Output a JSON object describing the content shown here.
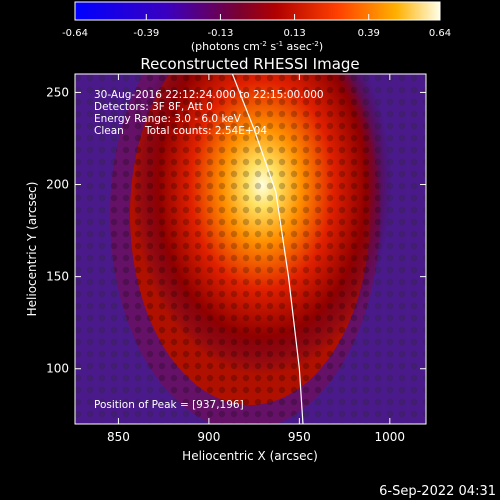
{
  "chart_data": {
    "type": "heatmap",
    "title": "Reconstructed RHESSI Image",
    "xlabel": "Heliocentric X (arcsec)",
    "ylabel": "Heliocentric Y (arcsec)",
    "xlim": [
      826,
      1020
    ],
    "ylim": [
      70,
      260
    ],
    "x_ticks": [
      850,
      900,
      950,
      1000
    ],
    "y_ticks": [
      100,
      150,
      200,
      250
    ],
    "colorbar": {
      "min": -0.64,
      "max": 0.64,
      "ticks": [
        "-0.64",
        "-0.39",
        "-0.13",
        "0.13",
        "0.39",
        "0.64"
      ],
      "units_prefix": "(photons cm",
      "units_sup1": "-2",
      "units_mid1": " s",
      "units_sup2": "-1",
      "units_mid2": " asec",
      "units_sup3": "-2",
      "units_suffix": ")"
    },
    "annotations": {
      "time_range": "30-Aug-2016 22:12:24.000 to 22:15:00.000",
      "detectors": "Detectors: 3F 8F, Att 0",
      "energy": "Energy Range: 3.0 - 6.0 keV",
      "method": "Clean",
      "counts": "Total counts: 2.54E+04",
      "peak": "Position of Peak = [937,196]"
    },
    "peak": [
      937,
      196
    ],
    "limb_curve": [
      [
        913,
        260
      ],
      [
        925,
        230
      ],
      [
        937,
        196
      ],
      [
        944,
        150
      ],
      [
        950,
        100
      ],
      [
        952,
        70
      ]
    ]
  },
  "footer": {
    "date": "6-Sep-2022 04:31"
  }
}
